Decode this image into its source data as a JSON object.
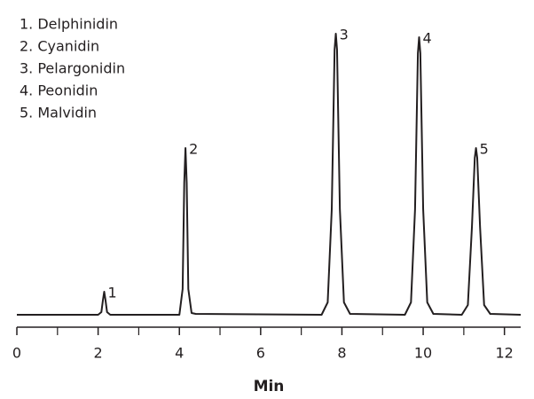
{
  "chart_data": {
    "type": "line",
    "x_label": "Min",
    "legend_items": [
      "1. Delphinidin",
      "2. Cyanidin",
      "3. Pelargonidin",
      "4. Peonidin",
      "5. Malvidin"
    ],
    "color": "#231f20",
    "x": [
      0,
      2.0,
      2.08,
      2.12,
      2.15,
      2.18,
      2.22,
      2.3,
      4.0,
      4.08,
      4.12,
      4.15,
      4.18,
      4.22,
      4.3,
      4.4,
      7.5,
      7.65,
      7.75,
      7.82,
      7.85,
      7.88,
      7.95,
      8.05,
      8.2,
      9.55,
      9.7,
      9.8,
      9.87,
      9.9,
      9.93,
      10.0,
      10.1,
      10.25,
      10.95,
      11.1,
      11.2,
      11.27,
      11.3,
      11.33,
      11.4,
      11.5,
      11.65,
      12.4
    ],
    "values": [
      1,
      1,
      4,
      18,
      27,
      18,
      4,
      1,
      1,
      30,
      150,
      189,
      150,
      30,
      3,
      2,
      1,
      15,
      120,
      300,
      318,
      300,
      120,
      15,
      2,
      1,
      15,
      120,
      296,
      314,
      296,
      120,
      15,
      2,
      1,
      12,
      100,
      178,
      189,
      178,
      100,
      12,
      2,
      1
    ],
    "peaks": [
      {
        "label": "1",
        "x": 2.15,
        "height": 27
      },
      {
        "label": "2",
        "x": 4.15,
        "height": 189
      },
      {
        "label": "3",
        "x": 7.85,
        "height": 318
      },
      {
        "label": "4",
        "x": 9.9,
        "height": 314
      },
      {
        "label": "5",
        "x": 11.3,
        "height": 189
      }
    ],
    "xlim": [
      0,
      12.4
    ],
    "xticks": [
      0,
      2,
      4,
      6,
      8,
      10,
      12
    ],
    "xticks_minor": [
      1,
      3,
      5,
      7,
      9,
      11
    ],
    "ylim": [
      0,
      330
    ]
  }
}
